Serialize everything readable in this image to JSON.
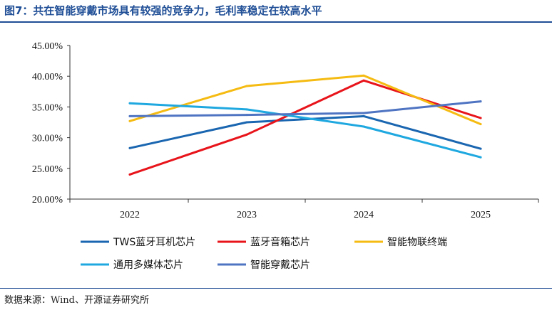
{
  "header": {
    "title": "图7：共在智能穿戴市场具有较强的竞争力，毛利率稳定在较高水平"
  },
  "footer": {
    "source": "数据来源：Wind、开源证券研究所"
  },
  "chart_data": {
    "type": "line",
    "x": [
      "2022",
      "2023",
      "2024",
      "2025"
    ],
    "ylim": [
      0.2,
      0.45
    ],
    "yticks": [
      "20.00%",
      "25.00%",
      "30.00%",
      "35.00%",
      "40.00%",
      "45.00%"
    ],
    "grid": false,
    "legend_position": "bottom",
    "series": [
      {
        "name": "TWS蓝牙耳机芯片",
        "color": "#1a66b0",
        "values": [
          0.283,
          0.325,
          0.335,
          0.282
        ]
      },
      {
        "name": "蓝牙音箱芯片",
        "color": "#e8141b",
        "values": [
          0.24,
          0.305,
          0.393,
          0.332
        ]
      },
      {
        "name": "智能物联终端",
        "color": "#f5bb12",
        "values": [
          0.327,
          0.384,
          0.401,
          0.322
        ]
      },
      {
        "name": "通用多媒体芯片",
        "color": "#1fa8e0",
        "values": [
          0.356,
          0.346,
          0.318,
          0.268
        ]
      },
      {
        "name": "智能穿戴芯片",
        "color": "#4f74c2",
        "values": [
          0.335,
          0.337,
          0.34,
          0.359
        ]
      }
    ]
  }
}
